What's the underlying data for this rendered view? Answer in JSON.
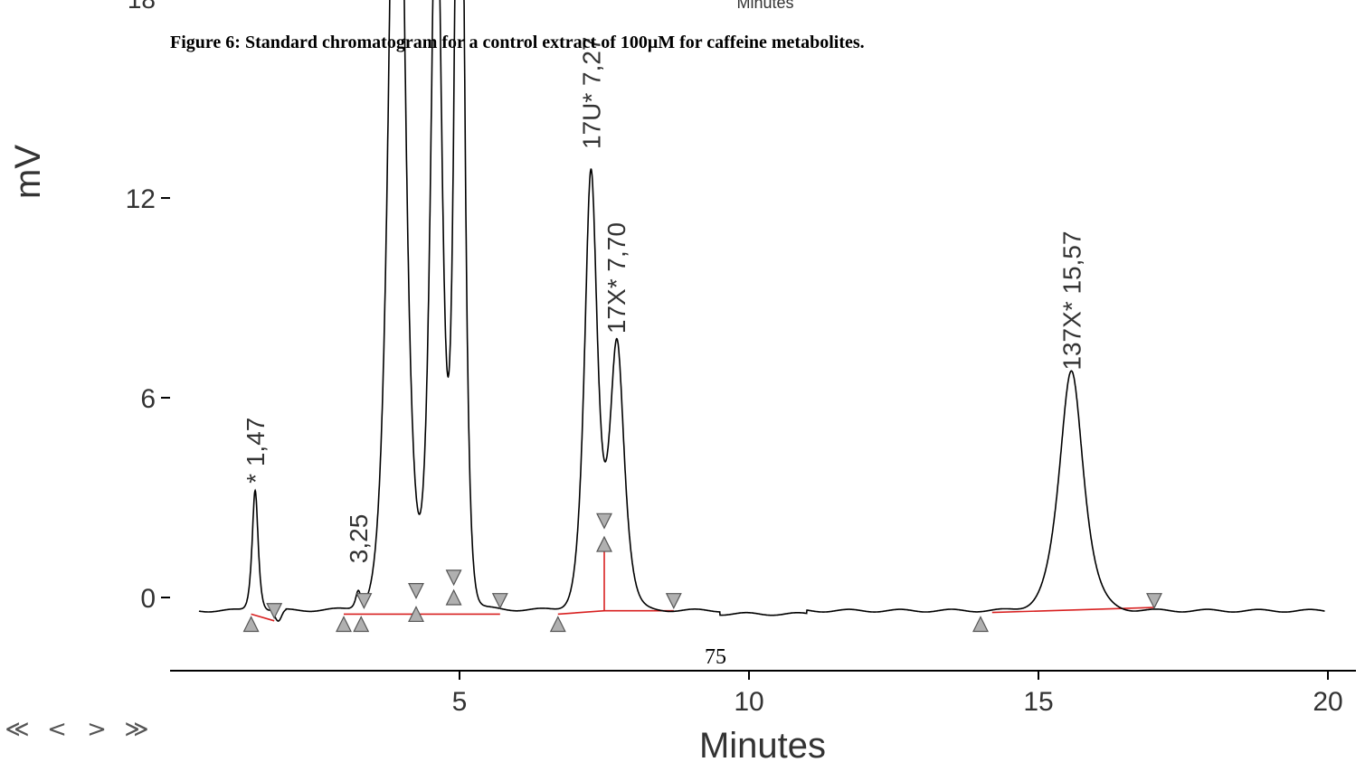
{
  "figure_caption": "Figure 6: Standard chromatogram for a control extract of 100μM for caffeine metabolites.",
  "page_number": "75",
  "top_cut_axis_label": "Minutes",
  "top_cut_tick_label": "18",
  "nav": {
    "first": "≪",
    "prev": "<",
    "next": ">",
    "last": "≫"
  },
  "colors": {
    "trace": "#000000",
    "baseline": "#d82020",
    "marker_fill": "#b0b0b0",
    "marker_stroke": "#555555",
    "axis": "#000000"
  },
  "chart_data": {
    "type": "line",
    "xlabel": "Minutes",
    "ylabel": "mV",
    "xlim": [
      0,
      20.5
    ],
    "ylim": [
      -2.2,
      18
    ],
    "x_ticks": [
      5,
      10,
      15,
      20
    ],
    "x_tick_labels": [
      "5",
      "10",
      "15",
      "20"
    ],
    "y_ticks": [
      0,
      6,
      12
    ],
    "y_tick_labels": [
      "0",
      "6",
      "12"
    ],
    "grid": false,
    "baseline_level": -0.4,
    "peaks": [
      {
        "label": "* 1,47",
        "rt": 1.47,
        "height": 3.1
      },
      {
        "label": "3,25",
        "rt": 3.25,
        "height": 0.7
      },
      {
        "label": "",
        "rt": 3.9,
        "height": 17.5
      },
      {
        "label": "",
        "rt": 4.6,
        "height": 16.0
      },
      {
        "label": "",
        "rt": 5.0,
        "height": 18.0
      },
      {
        "label": "17U* 7,27",
        "rt": 7.27,
        "height": 12.2
      },
      {
        "label": "17X* 7,70",
        "rt": 7.7,
        "height": 7.6
      },
      {
        "label": "137X* 15,57",
        "rt": 15.57,
        "height": 6.5
      }
    ],
    "integration_markers": {
      "up": [
        {
          "x": 1.4,
          "y": -0.8
        },
        {
          "x": 3.0,
          "y": -0.8
        },
        {
          "x": 3.3,
          "y": -0.8
        },
        {
          "x": 4.25,
          "y": -0.5
        },
        {
          "x": 4.9,
          "y": 0.0
        },
        {
          "x": 6.7,
          "y": -0.8
        },
        {
          "x": 7.5,
          "y": 1.6
        },
        {
          "x": 14.0,
          "y": -0.8
        }
      ],
      "down": [
        {
          "x": 1.8,
          "y": -0.4
        },
        {
          "x": 3.35,
          "y": -0.1
        },
        {
          "x": 4.25,
          "y": 0.2
        },
        {
          "x": 4.9,
          "y": 0.6
        },
        {
          "x": 5.7,
          "y": -0.1
        },
        {
          "x": 7.5,
          "y": 2.3
        },
        {
          "x": 8.7,
          "y": -0.1
        },
        {
          "x": 17.0,
          "y": -0.1
        }
      ]
    },
    "baseline_segments": [
      [
        [
          1.4,
          -0.5
        ],
        [
          1.8,
          -0.7
        ]
      ],
      [
        [
          3.0,
          -0.5
        ],
        [
          4.25,
          -0.5
        ],
        [
          4.9,
          -0.5
        ],
        [
          5.7,
          -0.5
        ]
      ],
      [
        [
          6.7,
          -0.5
        ],
        [
          7.5,
          -0.4
        ],
        [
          8.7,
          -0.4
        ]
      ],
      [
        [
          14.2,
          -0.45
        ],
        [
          17.0,
          -0.3
        ]
      ]
    ],
    "drop_line": {
      "x": 7.5,
      "y_from": -0.4,
      "y_to": 1.6
    }
  }
}
